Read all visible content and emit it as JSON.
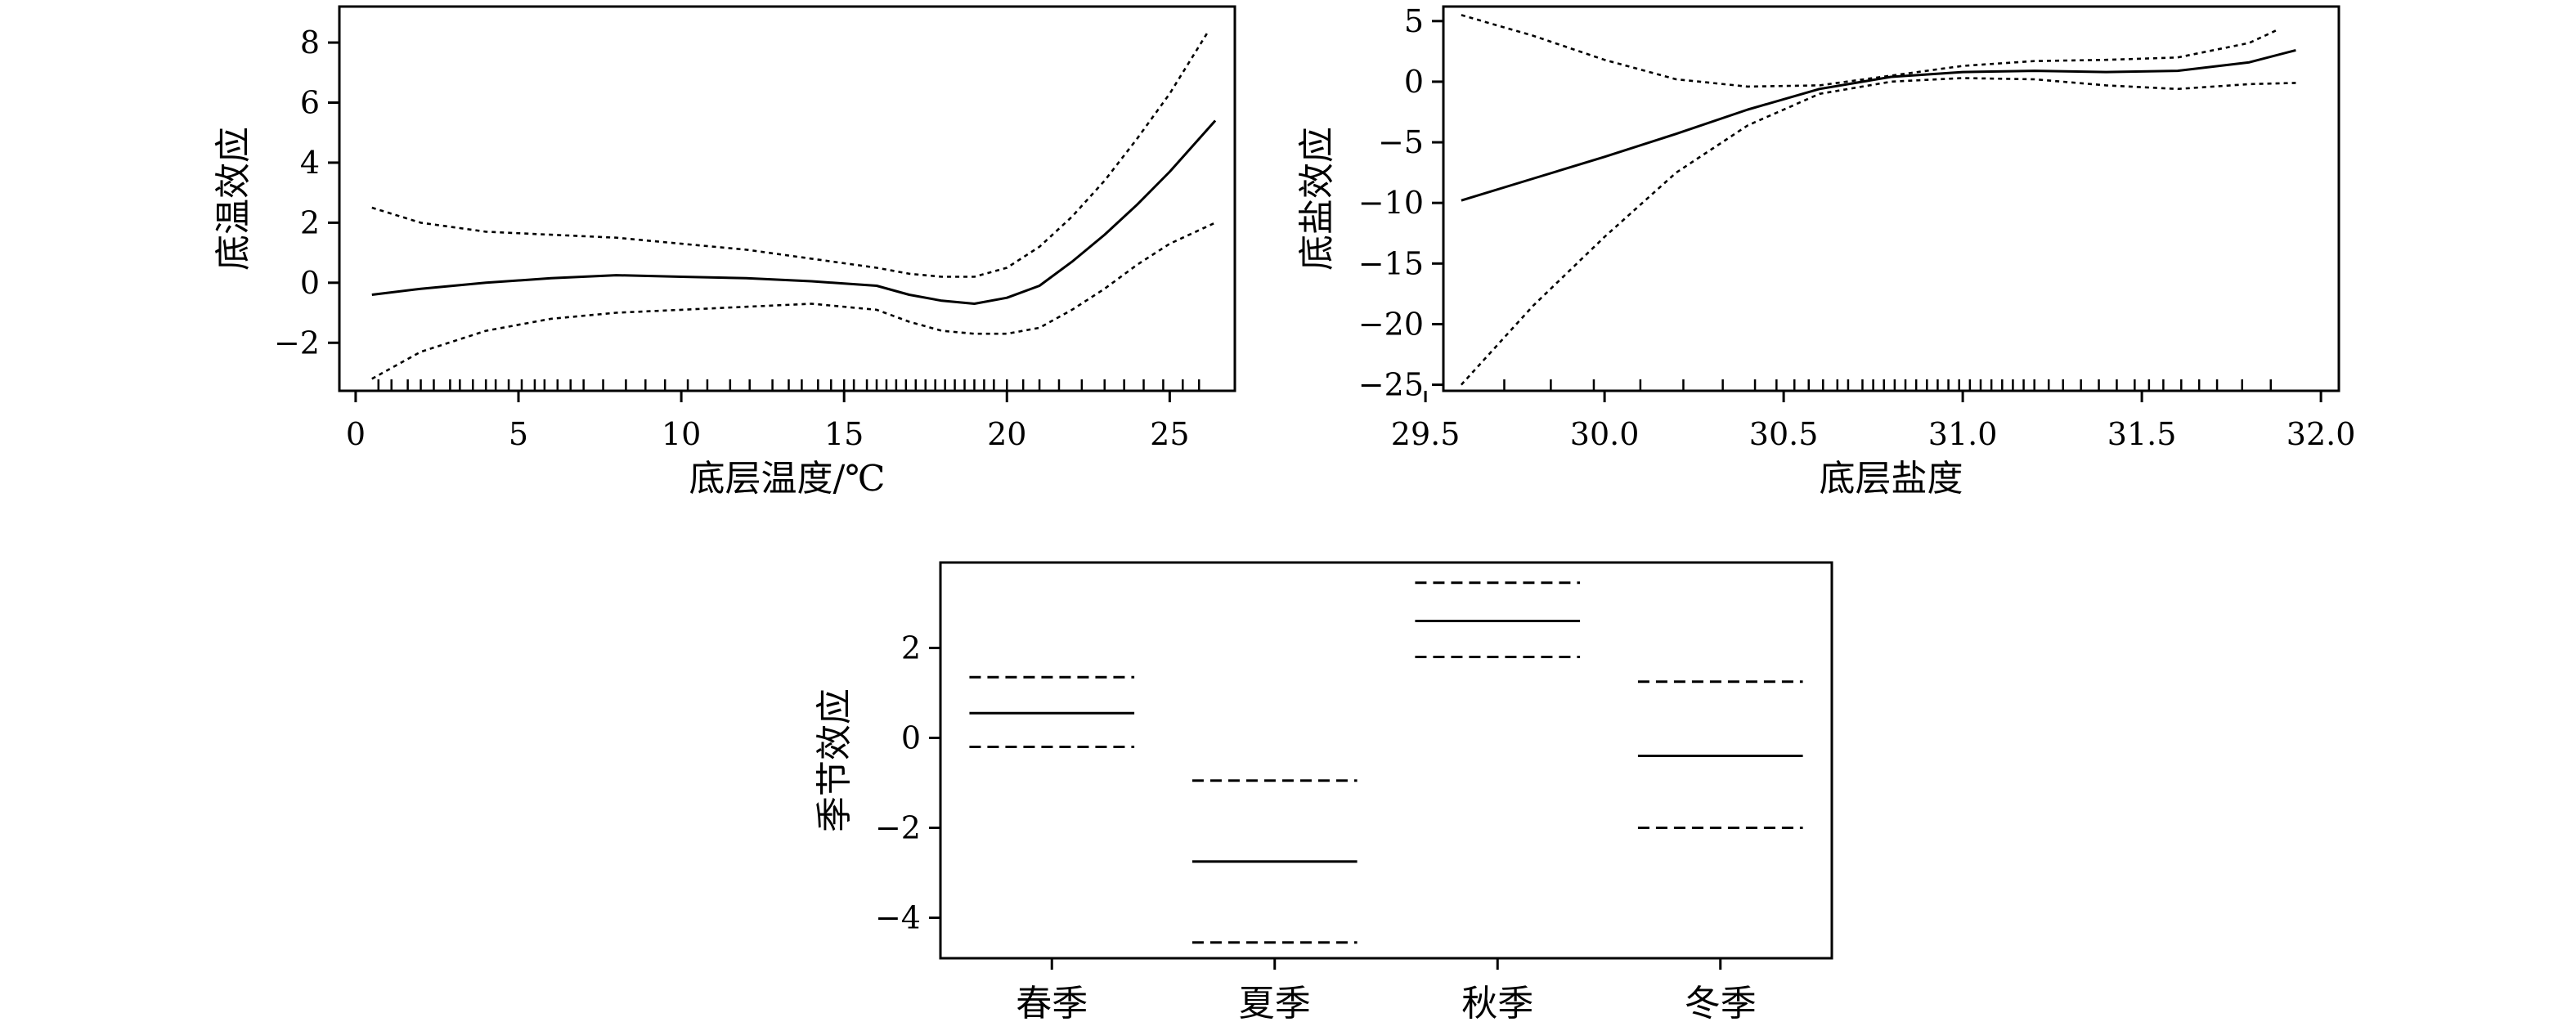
{
  "chart_data": [
    {
      "type": "line",
      "xlabel": "底层温度/℃",
      "ylabel": "底温效应",
      "xlim": [
        -0.5,
        27
      ],
      "ylim": [
        -3.6,
        9.2
      ],
      "xticks": [
        0,
        5,
        10,
        15,
        20,
        25
      ],
      "xtick_labels": [
        "0",
        "5",
        "10",
        "15",
        "20",
        "25"
      ],
      "yticks": [
        -2,
        0,
        2,
        4,
        6,
        8
      ],
      "ytick_labels": [
        "−2",
        "0",
        "2",
        "4",
        "6",
        "8"
      ],
      "grid": false,
      "series": [
        {
          "style": "solid",
          "x": [
            0.5,
            2,
            4,
            6,
            8,
            10,
            12,
            14,
            16,
            17,
            18,
            19,
            20,
            21,
            22,
            23,
            24,
            25,
            26.4
          ],
          "y": [
            -0.4,
            -0.2,
            0.0,
            0.15,
            0.25,
            0.2,
            0.15,
            0.05,
            -0.1,
            -0.4,
            -0.6,
            -0.7,
            -0.5,
            -0.1,
            0.7,
            1.6,
            2.6,
            3.7,
            5.4
          ]
        },
        {
          "style": "dotted",
          "x": [
            0.5,
            2,
            4,
            6,
            8,
            10,
            12,
            14,
            16,
            17,
            18,
            19,
            20,
            21,
            22,
            23,
            24,
            25,
            26.2
          ],
          "y": [
            2.5,
            2.0,
            1.7,
            1.6,
            1.5,
            1.3,
            1.1,
            0.8,
            0.5,
            0.3,
            0.2,
            0.2,
            0.5,
            1.2,
            2.2,
            3.4,
            4.8,
            6.3,
            8.4
          ]
        },
        {
          "style": "dotted",
          "x": [
            0.5,
            2,
            4,
            6,
            8,
            10,
            12,
            14,
            16,
            17,
            18,
            19,
            20,
            21,
            22,
            23,
            24,
            25,
            26.4
          ],
          "y": [
            -3.2,
            -2.3,
            -1.6,
            -1.2,
            -1.0,
            -0.9,
            -0.8,
            -0.7,
            -0.9,
            -1.3,
            -1.6,
            -1.7,
            -1.7,
            -1.5,
            -0.9,
            -0.2,
            0.6,
            1.3,
            2.0
          ]
        }
      ],
      "rug": [
        0.7,
        1.1,
        1.6,
        2.0,
        2.4,
        2.9,
        3.2,
        3.6,
        4.0,
        4.3,
        4.7,
        5.1,
        5.5,
        5.8,
        6.2,
        6.6,
        7.0,
        7.6,
        8.3,
        8.9,
        9.5,
        10.2,
        10.8,
        11.5,
        12.1,
        12.8,
        13.3,
        13.7,
        14.2,
        14.6,
        15.0,
        15.3,
        15.7,
        16.0,
        16.3,
        16.6,
        16.9,
        17.2,
        17.5,
        17.8,
        18.1,
        18.4,
        18.7,
        19.0,
        19.3,
        19.6,
        20.0,
        20.5,
        21.0,
        21.6,
        22.3,
        23.0,
        23.6,
        24.2,
        24.8,
        25.4,
        25.9
      ]
    },
    {
      "type": "line",
      "xlabel": "底层盐度",
      "ylabel": "底盐效应",
      "xlim": [
        29.55,
        32.05
      ],
      "ylim": [
        -25.5,
        6.2
      ],
      "xticks": [
        29.5,
        30.0,
        30.5,
        31.0,
        31.5,
        32.0
      ],
      "xtick_labels": [
        "29.5",
        "30.0",
        "30.5",
        "31.0",
        "31.5",
        "32.0"
      ],
      "yticks": [
        -25,
        -20,
        -15,
        -10,
        -5,
        0,
        5
      ],
      "ytick_labels": [
        "−25",
        "−20",
        "−15",
        "−10",
        "−5",
        "0",
        "5"
      ],
      "grid": false,
      "series": [
        {
          "style": "solid",
          "x": [
            29.6,
            29.8,
            30.0,
            30.2,
            30.4,
            30.6,
            30.8,
            31.0,
            31.2,
            31.4,
            31.6,
            31.8,
            31.93
          ],
          "y": [
            -9.8,
            -8.0,
            -6.2,
            -4.3,
            -2.3,
            -0.6,
            0.4,
            0.8,
            0.9,
            0.8,
            0.9,
            1.6,
            2.6
          ]
        },
        {
          "style": "dotted",
          "x": [
            29.6,
            29.8,
            30.0,
            30.2,
            30.4,
            30.6,
            30.8,
            31.0,
            31.2,
            31.4,
            31.6,
            31.8,
            31.88
          ],
          "y": [
            5.5,
            3.8,
            1.8,
            0.2,
            -0.4,
            -0.3,
            0.5,
            1.3,
            1.7,
            1.8,
            2.0,
            3.2,
            4.3
          ]
        },
        {
          "style": "dotted",
          "x": [
            29.6,
            29.8,
            30.0,
            30.2,
            30.4,
            30.6,
            30.8,
            31.0,
            31.2,
            31.4,
            31.6,
            31.8,
            31.93
          ],
          "y": [
            -25,
            -18.5,
            -12.8,
            -7.5,
            -3.6,
            -1.0,
            0.0,
            0.3,
            0.2,
            -0.3,
            -0.6,
            -0.2,
            -0.1
          ]
        }
      ],
      "rug": [
        29.72,
        29.85,
        29.97,
        30.1,
        30.22,
        30.33,
        30.42,
        30.48,
        30.53,
        30.57,
        30.61,
        30.65,
        30.68,
        30.72,
        30.75,
        30.78,
        30.81,
        30.84,
        30.87,
        30.9,
        30.93,
        30.96,
        30.99,
        31.02,
        31.05,
        31.08,
        31.11,
        31.14,
        31.17,
        31.2,
        31.24,
        31.28,
        31.33,
        31.38,
        31.43,
        31.48,
        31.52,
        31.56,
        31.61,
        31.66,
        31.71,
        31.78,
        31.86
      ]
    },
    {
      "type": "bar",
      "ylabel": "季节效应",
      "categories": [
        "春季",
        "夏季",
        "秋季",
        "冬季"
      ],
      "ylim": [
        -4.9,
        3.9
      ],
      "yticks": [
        -4,
        -2,
        0,
        2
      ],
      "ytick_labels": [
        "−4",
        "−2",
        "0",
        "2"
      ],
      "grid": false,
      "values": [
        0.55,
        -2.75,
        2.6,
        -0.4
      ],
      "lower": [
        -0.2,
        -4.55,
        1.8,
        -2.0
      ],
      "upper": [
        1.35,
        -0.95,
        3.45,
        1.25
      ]
    }
  ]
}
